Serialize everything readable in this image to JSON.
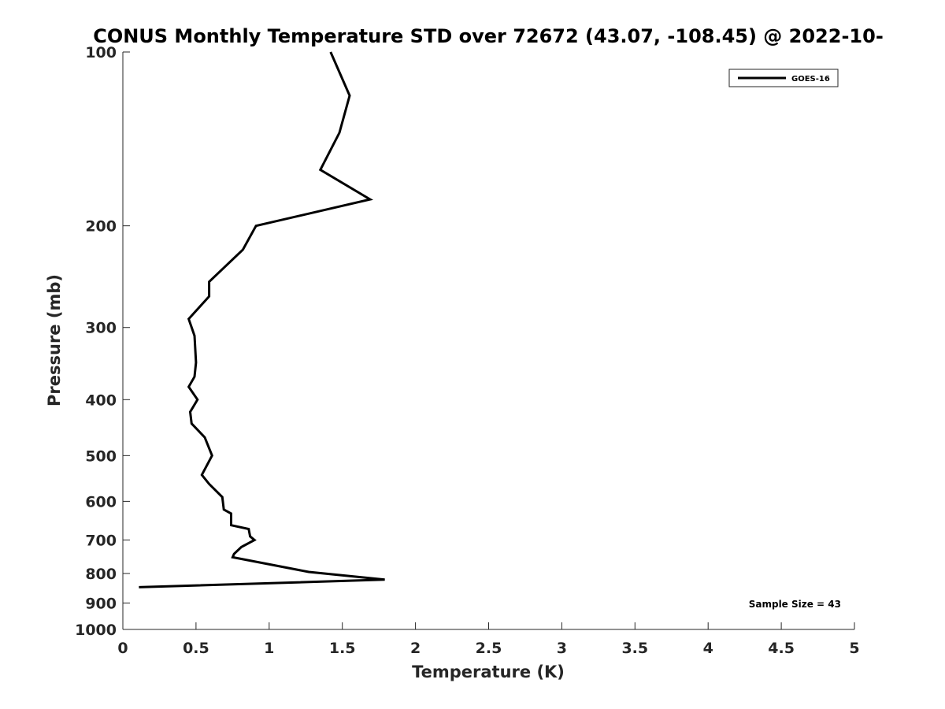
{
  "chart_data": {
    "type": "line",
    "title": "CONUS Monthly Temperature STD over 72672 (43.07, -108.45) @ 2022-10-",
    "xlabel": "Temperature (K)",
    "ylabel": "Pressure (mb)",
    "xlim": [
      0,
      5
    ],
    "ylim": [
      100,
      1000
    ],
    "y_scale": "log",
    "y_reversed": true,
    "x_ticks": [
      0,
      0.5,
      1,
      1.5,
      2,
      2.5,
      3,
      3.5,
      4,
      4.5,
      5
    ],
    "x_tick_labels": [
      "0",
      "0.5",
      "1",
      "1.5",
      "2",
      "2.5",
      "3",
      "3.5",
      "4",
      "4.5",
      "5"
    ],
    "y_ticks": [
      100,
      200,
      300,
      400,
      500,
      600,
      700,
      800,
      900,
      1000
    ],
    "y_tick_labels": [
      "100",
      "200",
      "300",
      "400",
      "500",
      "600",
      "700",
      "800",
      "900",
      "1000"
    ],
    "grid": false,
    "legend_position": "top-right",
    "series": [
      {
        "name": "GOES-16",
        "color": "#000000",
        "x": [
          1.42,
          1.55,
          1.48,
          1.35,
          1.69,
          0.91,
          0.82,
          0.59,
          0.59,
          0.45,
          0.49,
          0.5,
          0.49,
          0.45,
          0.51,
          0.46,
          0.47,
          0.56,
          0.61,
          0.54,
          0.59,
          0.68,
          0.69,
          0.74,
          0.74,
          0.86,
          0.87,
          0.9,
          0.81,
          0.76,
          0.75,
          1.27,
          1.79,
          0.11
        ],
        "y": [
          100,
          119,
          138,
          160,
          180,
          200,
          220,
          250,
          265,
          290,
          310,
          345,
          365,
          380,
          400,
          420,
          440,
          465,
          500,
          540,
          560,
          590,
          620,
          630,
          660,
          670,
          690,
          700,
          720,
          740,
          750,
          795,
          820,
          845
        ]
      }
    ],
    "annotations": [
      "Sample Size = 43"
    ]
  }
}
